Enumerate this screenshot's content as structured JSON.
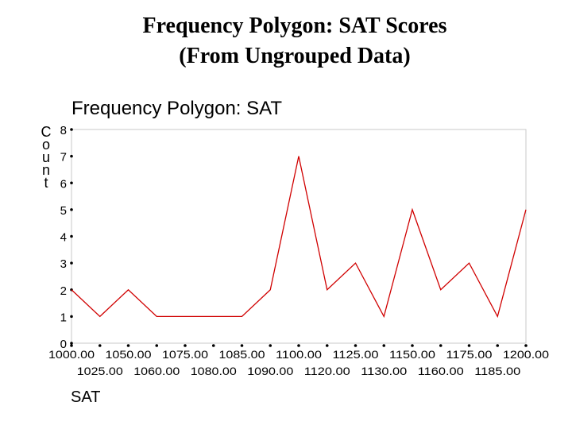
{
  "slide": {
    "title_line1": "Frequency Polygon:  SAT Scores",
    "title_line2": "(From Ungrouped Data)"
  },
  "chart_data": {
    "type": "line",
    "title": "Frequency Polygon:  SAT",
    "xlabel": "SAT",
    "ylabel": "Count",
    "categories": [
      "1000.00",
      "1025.00",
      "1050.00",
      "1060.00",
      "1075.00",
      "1080.00",
      "1085.00",
      "1090.00",
      "1100.00",
      "1120.00",
      "1125.00",
      "1130.00",
      "1150.00",
      "1160.00",
      "1175.00",
      "1185.00",
      "1200.00"
    ],
    "series": [
      {
        "values": [
          2,
          1,
          2,
          1,
          1,
          1,
          1,
          2,
          7,
          2,
          3,
          1,
          5,
          2,
          3,
          1,
          5
        ]
      }
    ],
    "yticks": [
      0,
      1,
      2,
      3,
      4,
      5,
      6,
      7,
      8
    ],
    "ylim": [
      0,
      8
    ],
    "line_color": "#d00000",
    "grid": false
  }
}
